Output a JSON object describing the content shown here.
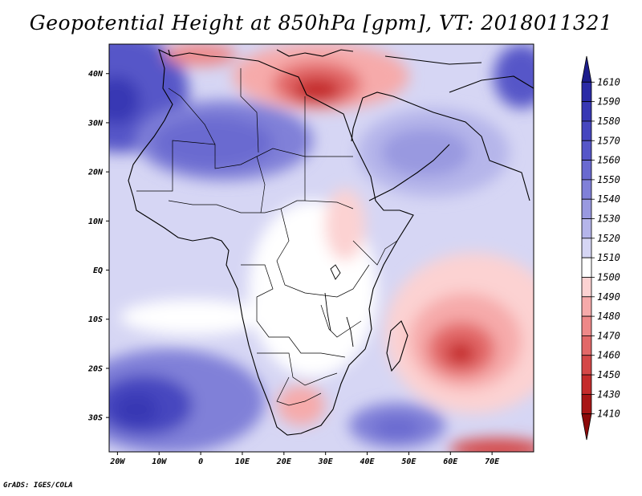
{
  "title": "Geopotential Height at 850hPa [gpm], VT: 2018011321",
  "credit": "GrADS: IGES/COLA",
  "map": {
    "variable": "Geopotential Height at 850hPa",
    "units": "gpm",
    "valid_time": "2018011321",
    "lat_labels": [
      "40N",
      "30N",
      "20N",
      "10N",
      "EQ",
      "10S",
      "20S",
      "30S"
    ],
    "lat_values": [
      40,
      30,
      20,
      10,
      0,
      -10,
      -20,
      -30
    ],
    "lon_labels": [
      "20W",
      "10W",
      "0",
      "10E",
      "20E",
      "30E",
      "40E",
      "50E",
      "60E",
      "70E"
    ],
    "lon_values": [
      -20,
      -10,
      0,
      10,
      20,
      30,
      40,
      50,
      60,
      70
    ],
    "extent": {
      "lon": [
        -22,
        80
      ],
      "lat": [
        -37,
        46
      ]
    }
  },
  "colorbar": {
    "levels": [
      "1610",
      "1590",
      "1580",
      "1570",
      "1560",
      "1550",
      "1540",
      "1530",
      "1520",
      "1510",
      "1500",
      "1490",
      "1480",
      "1470",
      "1460",
      "1450",
      "1430",
      "1410"
    ],
    "colors": [
      "#1c1c8c",
      "#2a2aa6",
      "#3838b4",
      "#4646bf",
      "#5656c8",
      "#6a6ad0",
      "#8080d8",
      "#9999e0",
      "#b5b5ea",
      "#d6d6f4",
      "#ffffff",
      "#fcd2d2",
      "#f6aaaa",
      "#ee8888",
      "#e26868",
      "#d44848",
      "#c42c2c",
      "#a81616",
      "#8c0a0a"
    ]
  }
}
